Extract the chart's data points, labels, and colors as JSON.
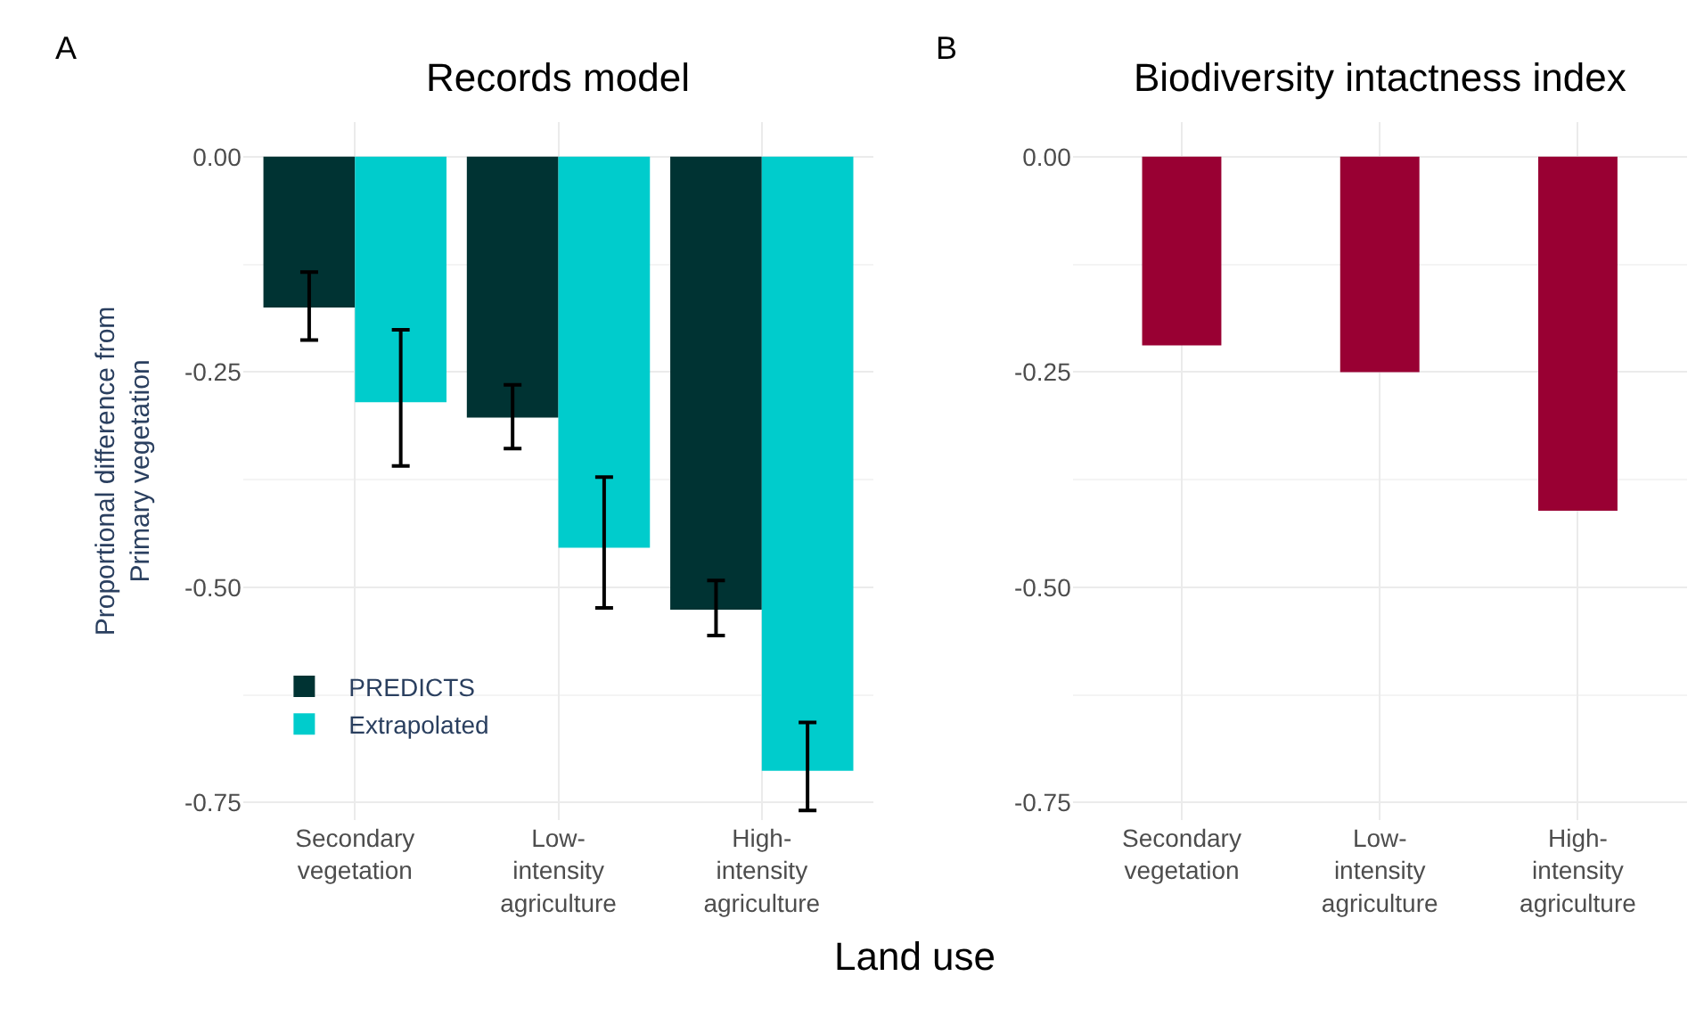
{
  "chart_data": [
    {
      "type": "bar",
      "title": "Records model",
      "xlabel": "Land use",
      "ylabel": "Proportional difference from\nPrimary vegetation",
      "annotations": [
        "A"
      ],
      "categories": [
        "Secondary\nvegetation",
        "Low-\nintensity\nagriculture",
        "High-\nintensity\nagriculture"
      ],
      "series": [
        {
          "name": "PREDICTS",
          "color": "#003333",
          "values": [
            -0.175,
            -0.303,
            -0.526
          ],
          "errors": [
            [
              -0.213,
              -0.134
            ],
            [
              -0.339,
              -0.265
            ],
            [
              -0.556,
              -0.492
            ]
          ]
        },
        {
          "name": "Extrapolated",
          "color": "#00cccc",
          "values": [
            -0.285,
            -0.454,
            -0.713
          ],
          "errors": [
            [
              -0.359,
              -0.201
            ],
            [
              -0.524,
              -0.372
            ],
            [
              -0.759,
              -0.657
            ]
          ]
        }
      ],
      "ylim": [
        -0.77,
        0.04
      ],
      "yticks": [
        {
          "value": 0,
          "label": "0.00"
        },
        {
          "value": -0.25,
          "label": "-0.25"
        },
        {
          "value": -0.5,
          "label": "-0.50"
        },
        {
          "value": -0.75,
          "label": "-0.75"
        }
      ],
      "grid": true,
      "legend": "bottom left"
    },
    {
      "type": "bar",
      "title": "Biodiversity intactness index",
      "annotations": [
        "B"
      ],
      "categories": [
        "Secondary\nvegetation",
        "Low-\nintensity\nagriculture",
        "High-\nintensity\nagriculture"
      ],
      "series": [
        {
          "color": "#990033",
          "values": [
            -0.219,
            -0.25,
            -0.411
          ]
        }
      ],
      "ylim": [
        -0.77,
        0.04
      ],
      "yticks": [
        {
          "value": 0,
          "label": "0.00"
        },
        {
          "value": -0.25,
          "label": "-0.25"
        },
        {
          "value": -0.5,
          "label": "-0.50"
        },
        {
          "value": -0.75,
          "label": "-0.75"
        }
      ],
      "grid": true
    }
  ]
}
